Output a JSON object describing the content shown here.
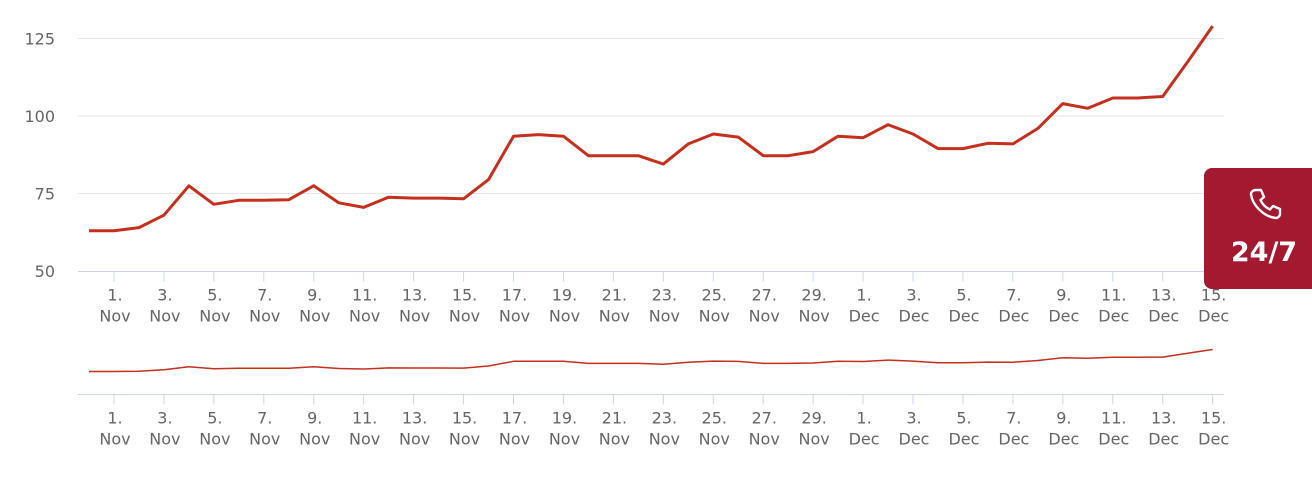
{
  "chart_data": [
    {
      "type": "line",
      "title": "",
      "xlabel": "",
      "ylabel": "",
      "ylim": [
        50,
        130
      ],
      "yticks": [
        "125",
        "100",
        "75",
        "50"
      ],
      "grid": true,
      "line_color": "#c4301e",
      "x": [
        "Nov 0",
        "Nov 1",
        "Nov 2",
        "Nov 3",
        "Nov 4",
        "Nov 5",
        "Nov 6",
        "Nov 7",
        "Nov 8",
        "Nov 9",
        "Nov 10",
        "Nov 11",
        "Nov 12",
        "Nov 13",
        "Nov 14",
        "Nov 15",
        "Nov 16",
        "Nov 17",
        "Nov 18",
        "Nov 19",
        "Nov 20",
        "Nov 21",
        "Nov 22",
        "Nov 23",
        "Nov 24",
        "Nov 25",
        "Nov 26",
        "Nov 27",
        "Nov 28",
        "Nov 29",
        "Nov 30",
        "Dec 1",
        "Dec 2",
        "Dec 3",
        "Dec 4",
        "Dec 5",
        "Dec 6",
        "Dec 7",
        "Dec 8",
        "Dec 9",
        "Dec 10",
        "Dec 11",
        "Dec 12",
        "Dec 13",
        "Dec 14",
        "Dec 15"
      ],
      "values": [
        63,
        63,
        64,
        68,
        77.5,
        71.5,
        72.8,
        72.8,
        73,
        77.5,
        72,
        70.5,
        73.8,
        73.5,
        73.5,
        73.3,
        79.5,
        93.5,
        94,
        93.5,
        87.2,
        87.2,
        87.2,
        84.5,
        91,
        94.2,
        93.2,
        87.2,
        87.2,
        88.5,
        93.5,
        93,
        97.2,
        94.2,
        89.5,
        89.5,
        91.2,
        91,
        96,
        104,
        102.5,
        105.8,
        105.8,
        106.3,
        117.5,
        129
      ],
      "xticks": [
        {
          "day": "1.",
          "month": "Nov"
        },
        {
          "day": "3.",
          "month": "Nov"
        },
        {
          "day": "5.",
          "month": "Nov"
        },
        {
          "day": "7.",
          "month": "Nov"
        },
        {
          "day": "9.",
          "month": "Nov"
        },
        {
          "day": "11.",
          "month": "Nov"
        },
        {
          "day": "13.",
          "month": "Nov"
        },
        {
          "day": "15.",
          "month": "Nov"
        },
        {
          "day": "17.",
          "month": "Nov"
        },
        {
          "day": "19.",
          "month": "Nov"
        },
        {
          "day": "21.",
          "month": "Nov"
        },
        {
          "day": "23.",
          "month": "Nov"
        },
        {
          "day": "25.",
          "month": "Nov"
        },
        {
          "day": "27.",
          "month": "Nov"
        },
        {
          "day": "29.",
          "month": "Nov"
        },
        {
          "day": "1.",
          "month": "Dec"
        },
        {
          "day": "3.",
          "month": "Dec"
        },
        {
          "day": "5.",
          "month": "Dec"
        },
        {
          "day": "7.",
          "month": "Dec"
        },
        {
          "day": "9.",
          "month": "Dec"
        },
        {
          "day": "11.",
          "month": "Dec"
        },
        {
          "day": "13.",
          "month": "Dec"
        },
        {
          "day": "15.",
          "month": "Dec"
        }
      ]
    },
    {
      "type": "line",
      "role": "navigator",
      "title": "",
      "same_data_as": "chart_data.0.values",
      "line_color": "#c4301e",
      "xticks": "same as chart_data.0.xticks"
    }
  ],
  "badge": {
    "label": "24/7",
    "icon": "phone-icon",
    "background": "#a3192f"
  }
}
